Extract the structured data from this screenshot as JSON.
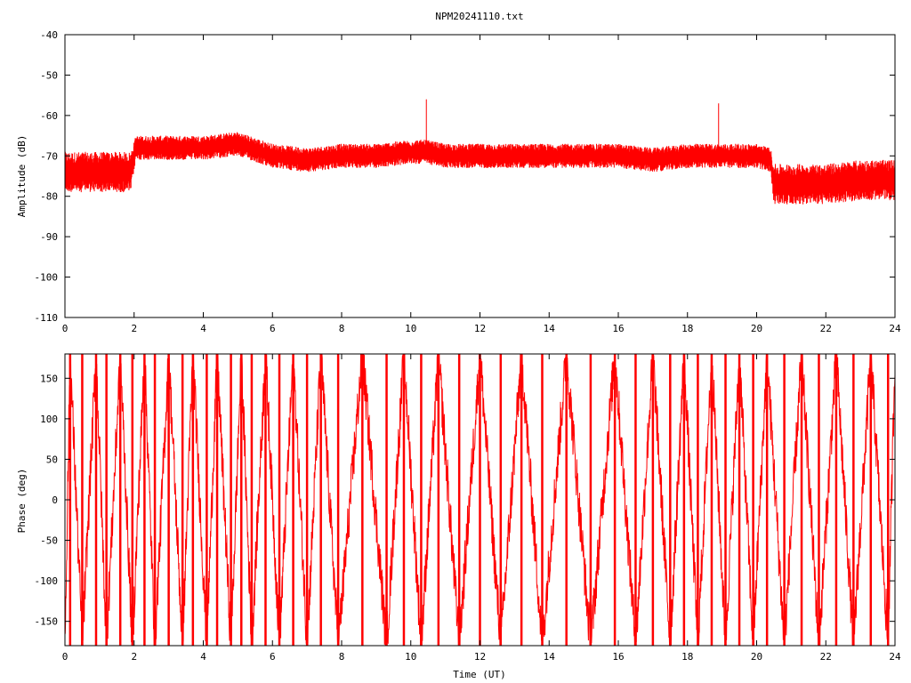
{
  "chart_data": [
    {
      "type": "line",
      "title": "NPM20241110.txt",
      "xlabel": "",
      "ylabel": "Amplitude (dB)",
      "xlim": [
        0,
        24
      ],
      "ylim": [
        -110,
        -40
      ],
      "x_ticks": [
        0,
        2,
        4,
        6,
        8,
        10,
        12,
        14,
        16,
        18,
        20,
        22,
        24
      ],
      "y_ticks": [
        -40,
        -50,
        -60,
        -70,
        -80,
        -90,
        -100,
        -110
      ],
      "x_tick_labels": [
        "0",
        "2",
        "4",
        "6",
        "8",
        "10",
        "12",
        "14",
        "16",
        "18",
        "20",
        "22",
        "24"
      ],
      "y_tick_labels": [
        "-40",
        "-50",
        "-60",
        "-70",
        "-80",
        "-90",
        "-100",
        "-110"
      ],
      "grid": false,
      "color": "#ff0000",
      "x": [
        0,
        1,
        1.9,
        2.05,
        3,
        4,
        5,
        6,
        7,
        8,
        9,
        10,
        10.45,
        11,
        12,
        13,
        14,
        15,
        16,
        17,
        18,
        18.9,
        19,
        20,
        20.4,
        20.5,
        21,
        22,
        23,
        24
      ],
      "values": [
        -74,
        -74,
        -74,
        -68,
        -68,
        -68,
        -67,
        -70,
        -71,
        -70,
        -70,
        -69,
        -69,
        -70,
        -70,
        -70,
        -70,
        -70,
        -70,
        -71,
        -70,
        -70,
        -70,
        -70,
        -71,
        -77,
        -77,
        -77,
        -76,
        -76
      ],
      "band": [
        5,
        5,
        5,
        3,
        3,
        3,
        3,
        3,
        3,
        3,
        3,
        3,
        3,
        3,
        3,
        3,
        3,
        3,
        3,
        3,
        3,
        3,
        3,
        3,
        3,
        5,
        5,
        5,
        5,
        5
      ],
      "spikes": [
        {
          "x": 10.45,
          "y": -56
        },
        {
          "x": 18.9,
          "y": -57
        }
      ]
    },
    {
      "type": "line",
      "title": "",
      "xlabel": "Time (UT)",
      "ylabel": "Phase (deg)",
      "xlim": [
        0,
        24
      ],
      "ylim": [
        -180,
        180
      ],
      "x_ticks": [
        0,
        2,
        4,
        6,
        8,
        10,
        12,
        14,
        16,
        18,
        20,
        22,
        24
      ],
      "y_ticks": [
        150,
        100,
        50,
        0,
        -50,
        -100,
        -150
      ],
      "x_tick_labels": [
        "0",
        "2",
        "4",
        "6",
        "8",
        "10",
        "12",
        "14",
        "16",
        "18",
        "20",
        "22",
        "24"
      ],
      "y_tick_labels": [
        "150",
        "100",
        "50",
        "0",
        "-50",
        "-100",
        "-150"
      ],
      "grid": false,
      "color": "#ff0000",
      "wrap_times": [
        0.15,
        0.5,
        0.9,
        1.2,
        1.6,
        1.95,
        2.3,
        2.6,
        3.0,
        3.4,
        3.7,
        4.1,
        4.4,
        4.8,
        5.1,
        5.4,
        5.8,
        6.2,
        6.6,
        7.0,
        7.4,
        7.9,
        8.6,
        9.3,
        9.8,
        10.3,
        10.8,
        11.4,
        12.0,
        12.6,
        13.2,
        13.8,
        14.5,
        15.2,
        15.9,
        16.5,
        17.0,
        17.5,
        17.9,
        18.3,
        18.7,
        19.1,
        19.5,
        19.9,
        20.3,
        20.8,
        21.3,
        21.8,
        22.3,
        22.8,
        23.3,
        23.8
      ],
      "noise": 30
    }
  ]
}
